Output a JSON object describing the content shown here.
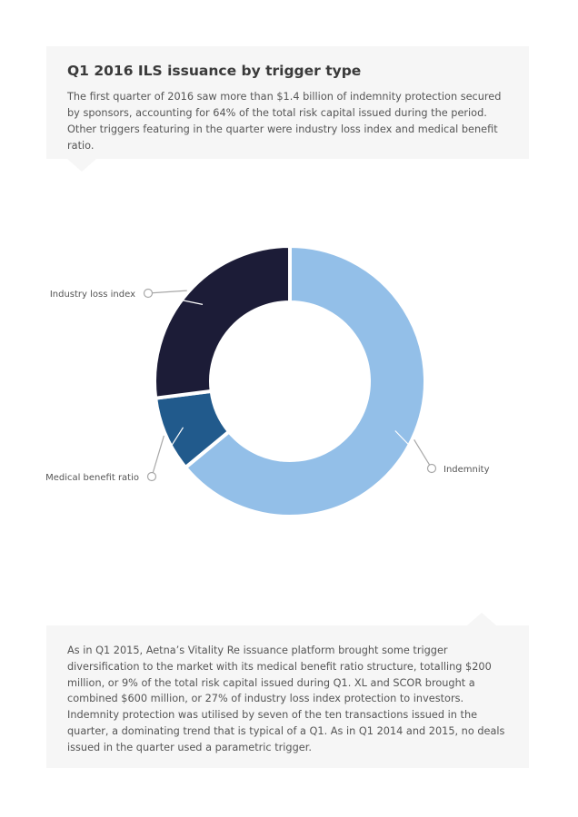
{
  "header": {
    "title": "Q1 2016 ILS issuance by trigger type",
    "intro": "The first quarter of 2016 saw more than $1.4 billion of indemnity protection secured by sponsors, accounting for 64% of the total risk capital issued during the period. Other triggers featuring in the quarter were industry loss index and medical benefit ratio."
  },
  "chart_data": {
    "type": "pie",
    "donut": true,
    "categories": [
      "Indemnity",
      "Medical benefit ratio",
      "Industry loss index"
    ],
    "values": [
      64,
      9,
      27
    ],
    "colors": [
      "#93bfe8",
      "#215a8c",
      "#1c1c37"
    ],
    "legend": "callout labels"
  },
  "footer": {
    "text": "As in Q1 2015, Aetna’s Vitality Re issuance platform brought some trigger diversification to the market with its medical benefit ratio structure, totalling $200 million, or 9% of the total risk capital issued during Q1. XL and SCOR brought a combined $600 million, or 27% of industry loss index protection to investors. Indemnity protection was utilised by seven of the ten transactions issued in the quarter, a dominating trend that is typical of a Q1. As in Q1 2014 and 2015, no deals issued in the quarter used a parametric trigger."
  }
}
